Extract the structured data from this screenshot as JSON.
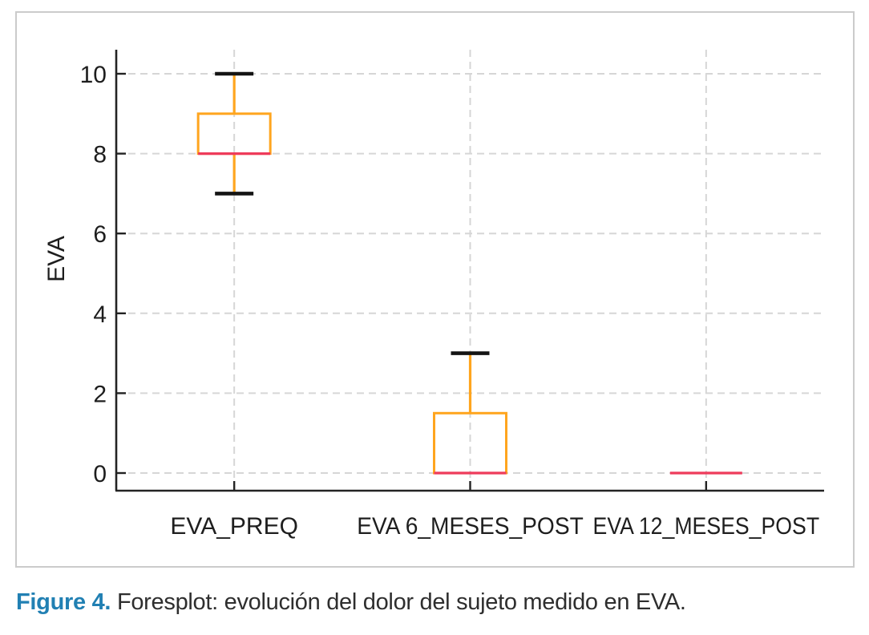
{
  "figure": {
    "frame_border_color": "#cbcbcb",
    "background": "#ffffff"
  },
  "chart_data": {
    "type": "boxplot",
    "title": "",
    "xlabel": "",
    "ylabel": "EVA",
    "categories": [
      "EVA_PREQ",
      "EVA 6_MESES_POST",
      "EVA 12_MESES_POST"
    ],
    "yticks": [
      0,
      2,
      4,
      6,
      8,
      10
    ],
    "ylim": [
      -0.45,
      10.6
    ],
    "grid": "dashed horizontal and vertical, light gray",
    "legend": "none",
    "series": [
      {
        "label": "EVA_PREQ",
        "whisker_low": 7,
        "q1": 8,
        "median": 8,
        "q3": 9,
        "whisker_high": 10
      },
      {
        "label": "EVA 6_MESES_POST",
        "whisker_low": 0,
        "q1": 0,
        "median": 0,
        "q3": 1.5,
        "whisker_high": 3
      },
      {
        "label": "EVA 12_MESES_POST",
        "whisker_low": 0,
        "q1": 0,
        "median": 0,
        "q3": 0,
        "whisker_high": 0
      }
    ],
    "colors": {
      "box_stroke": "#FFA51E",
      "whisker": "#FFA51E",
      "whisker_cap": "#141414",
      "median": "#EE3B5B",
      "grid": "#d6d6d6",
      "axis": "#232323",
      "tick_label": "#1e1e1e"
    }
  },
  "caption": {
    "label": "Figure 4.",
    "text": "Foresplot: evolución del dolor del sujeto medido en EVA.",
    "label_color": "#2180B3",
    "text_color": "#2e2e2e"
  }
}
